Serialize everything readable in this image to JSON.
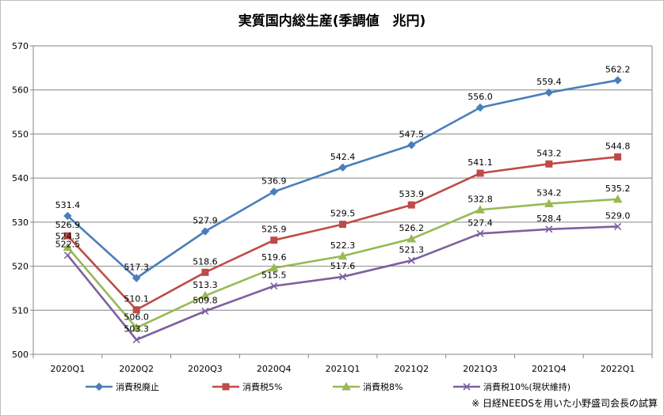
{
  "chart_data": {
    "type": "line",
    "title": "実質国内総生産(季調値　兆円)",
    "xlabel": "",
    "ylabel": "",
    "ylim": [
      500,
      570
    ],
    "yticks": [
      500,
      510,
      520,
      530,
      540,
      550,
      560,
      570
    ],
    "grid": true,
    "legend_position": "bottom",
    "categories": [
      "2020Q1",
      "2020Q2",
      "2020Q3",
      "2020Q4",
      "2021Q1",
      "2021Q2",
      "2021Q3",
      "2021Q4",
      "2022Q1"
    ],
    "series": [
      {
        "name": "消費税廃止",
        "color": "#4a7ebb",
        "marker": "diamond",
        "values": [
          531.4,
          517.3,
          527.9,
          536.9,
          542.4,
          547.5,
          556.0,
          559.4,
          562.2
        ],
        "labels": [
          "531.4",
          "517.3",
          "527.9",
          "536.9",
          "542.4",
          "547.5",
          "556.0",
          "559.4",
          "562.2"
        ]
      },
      {
        "name": "消費税5%",
        "color": "#be4b48",
        "marker": "square",
        "values": [
          526.9,
          510.1,
          518.6,
          525.9,
          529.5,
          533.9,
          541.1,
          543.2,
          544.8
        ],
        "labels": [
          "526.9",
          "510.1",
          "518.6",
          "525.9",
          "529.5",
          "533.9",
          "541.1",
          "543.2",
          "544.8"
        ]
      },
      {
        "name": "消費税8%",
        "color": "#98b954",
        "marker": "triangle",
        "values": [
          524.3,
          506.0,
          513.3,
          519.6,
          522.3,
          526.2,
          532.8,
          534.2,
          535.2
        ],
        "labels": [
          "524.3",
          "506.0",
          "513.3",
          "519.6",
          "522.3",
          "526.2",
          "532.8",
          "534.2",
          "535.2"
        ]
      },
      {
        "name": "消費税10%(現状維持)",
        "color": "#7d60a0",
        "marker": "x",
        "values": [
          522.5,
          503.3,
          509.8,
          515.5,
          517.6,
          521.3,
          527.4,
          528.4,
          529.0
        ],
        "labels": [
          "522.5",
          "503.3",
          "509.8",
          "515.5",
          "517.6",
          "521.3",
          "527.4",
          "528.4",
          "529.0"
        ]
      }
    ]
  },
  "source_note": "※ 日経NEEDSを用いた小野盛司会長の試算"
}
